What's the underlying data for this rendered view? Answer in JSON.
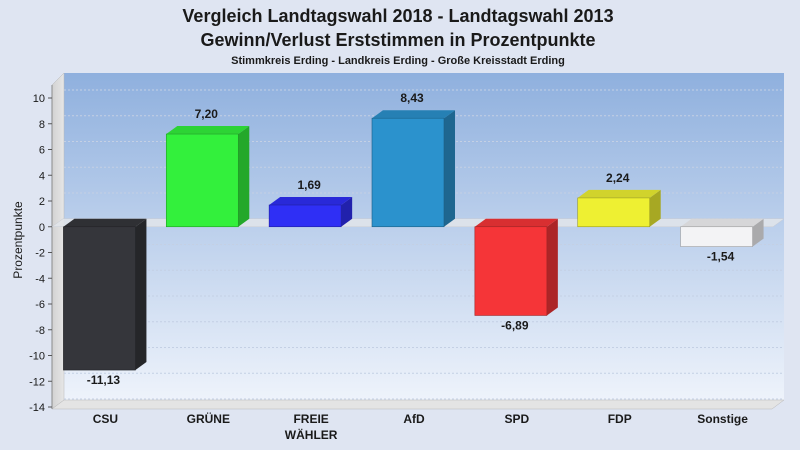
{
  "chart_data": {
    "type": "bar",
    "title": "Vergleich Landtagswahl 2018 - Landtagswahl 2013",
    "title2": "Gewinn/Verlust Erststimmen in Prozentpunkte",
    "subtitle": "Stimmkreis Erding - Landkreis Erding - Große Kreisstadt Erding",
    "ylabel": "Prozentpunkte",
    "ylim": [
      -14,
      10
    ],
    "yticks": [
      "10",
      "8",
      "6",
      "4",
      "2",
      "0",
      "-2",
      "-4",
      "-6",
      "-8",
      "-10",
      "-12",
      "-14"
    ],
    "grid": true,
    "categories": [
      {
        "line1": "CSU",
        "line2": ""
      },
      {
        "line1": "GRÜNE",
        "line2": ""
      },
      {
        "line1": "FREIE",
        "line2": "WÄHLER"
      },
      {
        "line1": "AfD",
        "line2": ""
      },
      {
        "line1": "SPD",
        "line2": ""
      },
      {
        "line1": "FDP",
        "line2": ""
      },
      {
        "line1": "Sonstige",
        "line2": ""
      }
    ],
    "values": [
      -11.13,
      7.2,
      1.69,
      8.43,
      -6.89,
      2.24,
      -1.54
    ],
    "labels": [
      "-11,13",
      "7,20",
      "1,69",
      "8,43",
      "-6,89",
      "2,24",
      "-1,54"
    ],
    "colors": [
      "#35363b",
      "#33f03c",
      "#2f2ff5",
      "#2b92cd",
      "#f53538",
      "#eef032",
      "#f3f3f5"
    ]
  }
}
